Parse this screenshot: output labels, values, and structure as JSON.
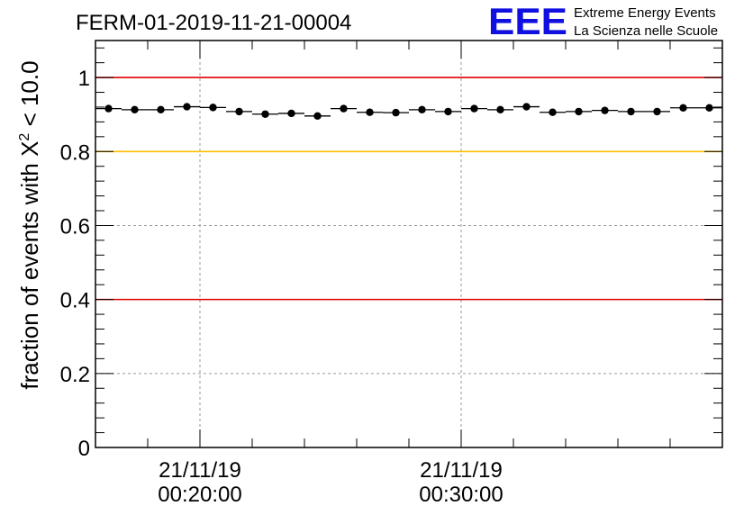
{
  "title": "FERM-01-2019-11-21-00004",
  "logo": {
    "letters": "EEE",
    "line1": "Extreme Energy Events",
    "line2": "La Scienza nelle Scuole",
    "color": "#1010e0"
  },
  "chart_data": {
    "type": "scatter",
    "title": "FERM-01-2019-11-21-00004",
    "xlabel": "",
    "ylabel": "fraction of events with χ² < 10.0",
    "ylabel_parts": {
      "pre": "fraction of events with X",
      "sup": "2",
      "post": " < 10.0"
    },
    "ylim": [
      0,
      1.1
    ],
    "xlim": [
      "21/11/19 00:16:00",
      "21/11/19 00:40:00"
    ],
    "x_ticks": [
      {
        "x": "21/11/19 00:20:00",
        "date": "21/11/19",
        "time": "00:20:00"
      },
      {
        "x": "21/11/19 00:30:00",
        "date": "21/11/19",
        "time": "00:30:00"
      }
    ],
    "y_ticks": [
      {
        "value": 0,
        "label": "0"
      },
      {
        "value": 0.2,
        "label": "0.2"
      },
      {
        "value": 0.4,
        "label": "0.4"
      },
      {
        "value": 0.6,
        "label": "0.6"
      },
      {
        "value": 0.8,
        "label": "0.8"
      },
      {
        "value": 1.0,
        "label": "1"
      }
    ],
    "grid": true,
    "reference_lines": [
      {
        "y": 1.0,
        "color": "#e00000"
      },
      {
        "y": 0.8,
        "color": "#ffc000"
      },
      {
        "y": 0.4,
        "color": "#e00000"
      }
    ],
    "series": [
      {
        "bin_width_min": 1,
        "x": [
          "00:16:30",
          "00:17:30",
          "00:18:30",
          "00:19:30",
          "00:20:30",
          "00:21:30",
          "00:22:30",
          "00:23:30",
          "00:24:30",
          "00:25:30",
          "00:26:30",
          "00:27:30",
          "00:28:30",
          "00:29:30",
          "00:30:30",
          "00:31:30",
          "00:32:30",
          "00:33:30",
          "00:34:30",
          "00:35:30",
          "00:36:30",
          "00:37:30",
          "00:38:30",
          "00:39:30"
        ],
        "y": [
          0.916,
          0.913,
          0.913,
          0.921,
          0.919,
          0.908,
          0.901,
          0.903,
          0.896,
          0.916,
          0.906,
          0.905,
          0.913,
          0.908,
          0.916,
          0.913,
          0.921,
          0.906,
          0.908,
          0.911,
          0.908,
          0.908,
          0.918,
          0.918
        ]
      }
    ]
  }
}
